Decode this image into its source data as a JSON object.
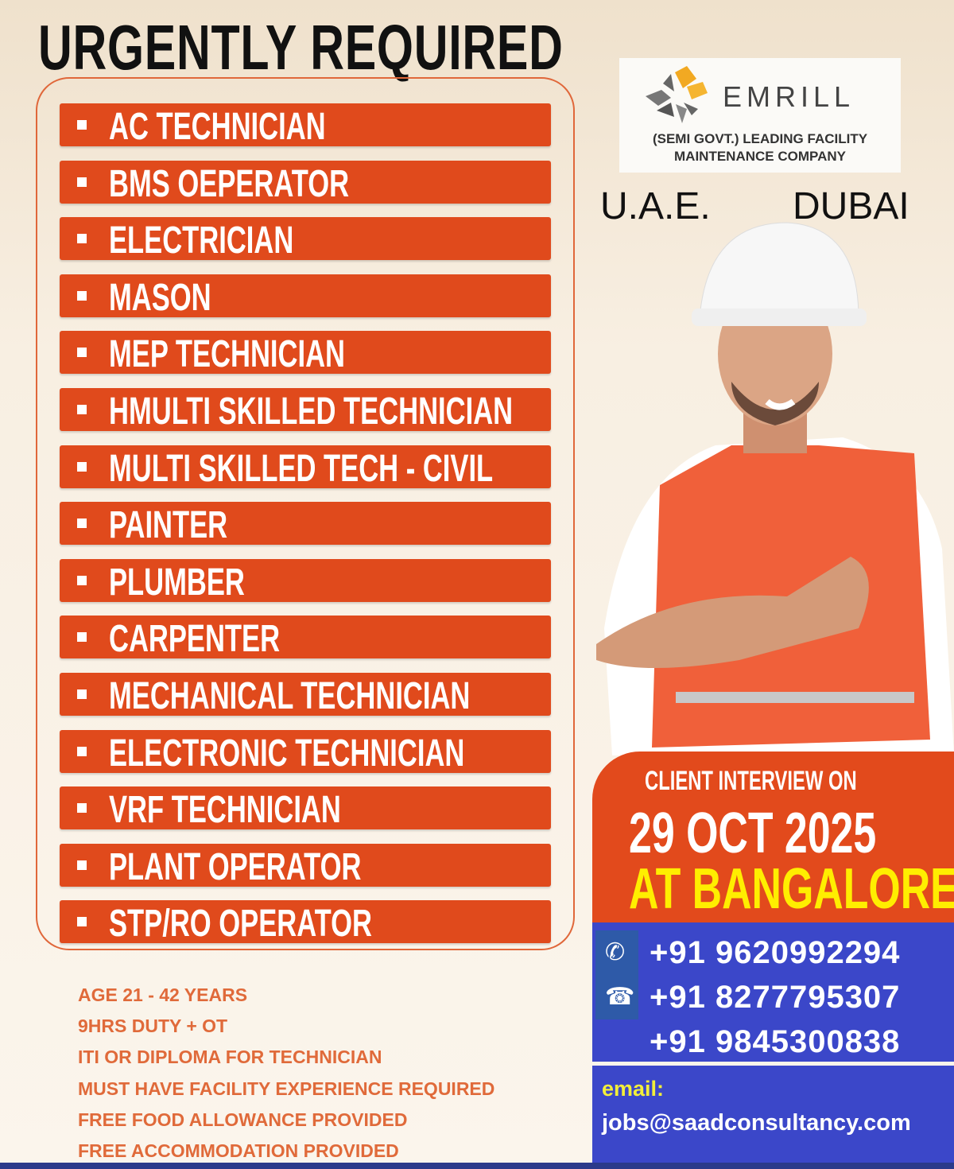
{
  "title": "URGENTLY REQUIRED",
  "jobs": [
    "AC TECHNICIAN",
    "BMS OEPERATOR",
    "ELECTRICIAN",
    "MASON",
    "MEP TECHNICIAN",
    "HMULTI SKILLED TECHNICIAN",
    "MULTI SKILLED TECH - CIVIL",
    "PAINTER",
    "PLUMBER",
    "CARPENTER",
    "MECHANICAL TECHNICIAN",
    "ELECTRONIC TECHNICIAN",
    "VRF TECHNICIAN",
    "PLANT OPERATOR",
    "STP/RO OPERATOR"
  ],
  "requirements": [
    "AGE 21 - 42 YEARS",
    "9HRS DUTY + OT",
    "ITI OR DIPLOMA FOR TECHNICIAN",
    "MUST HAVE FACILITY EXPERIENCE REQUIRED",
    "FREE FOOD ALLOWANCE PROVIDED",
    "FREE ACCOMMODATION PROVIDED"
  ],
  "company": {
    "name": "EMRILL",
    "tagline1": "(SEMI GOVT.) LEADING FACILITY",
    "tagline2": "MAINTENANCE COMPANY"
  },
  "location": {
    "country": "U.A.E.",
    "city": "DUBAI"
  },
  "interview": {
    "label": "CLIENT INTERVIEW ON",
    "date": "29 OCT 2025",
    "venue": "AT BANGALORE"
  },
  "contact": {
    "phones": [
      "+91 9620992294",
      "+91 8277795307",
      "+91 9845300838"
    ],
    "email_label": "email:",
    "email": "jobs@saadconsultancy.com"
  },
  "colors": {
    "bar": "#e04a1c",
    "blue": "#3b47c9",
    "yellow": "#ffee00",
    "req_text": "#e06a3a"
  }
}
